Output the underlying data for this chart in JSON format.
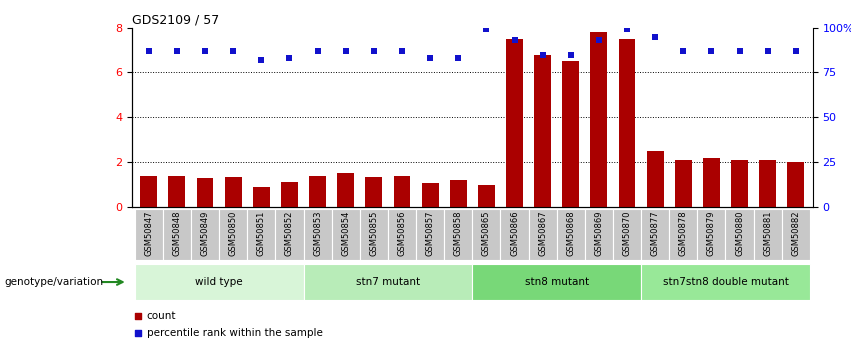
{
  "title": "GDS2109 / 57",
  "samples": [
    "GSM50847",
    "GSM50848",
    "GSM50849",
    "GSM50850",
    "GSM50851",
    "GSM50852",
    "GSM50853",
    "GSM50854",
    "GSM50855",
    "GSM50856",
    "GSM50857",
    "GSM50858",
    "GSM50865",
    "GSM50866",
    "GSM50867",
    "GSM50868",
    "GSM50869",
    "GSM50870",
    "GSM50877",
    "GSM50878",
    "GSM50879",
    "GSM50880",
    "GSM50881",
    "GSM50882"
  ],
  "counts": [
    1.4,
    1.4,
    1.3,
    1.35,
    0.9,
    1.1,
    1.4,
    1.5,
    1.35,
    1.4,
    1.05,
    1.2,
    1.0,
    7.5,
    6.8,
    6.5,
    7.8,
    7.5,
    2.5,
    2.1,
    2.2,
    2.1,
    2.1,
    2.0
  ],
  "percentiles": [
    87,
    87,
    87,
    87,
    82,
    83,
    87,
    87,
    87,
    87,
    83,
    83,
    99,
    93,
    85,
    85,
    93,
    99,
    95,
    87,
    87,
    87,
    87,
    87
  ],
  "groups": [
    {
      "label": "wild type",
      "start": 0,
      "end": 6,
      "color": "#d8f5d8"
    },
    {
      "label": "stn7 mutant",
      "start": 6,
      "end": 12,
      "color": "#b8ecb8"
    },
    {
      "label": "stn8 mutant",
      "start": 12,
      "end": 18,
      "color": "#78d878"
    },
    {
      "label": "stn7stn8 double mutant",
      "start": 18,
      "end": 24,
      "color": "#98e898"
    }
  ],
  "bar_color": "#aa0000",
  "dot_color": "#1111cc",
  "ylim_left": [
    0,
    8
  ],
  "ylim_right": [
    0,
    100
  ],
  "yticks_left": [
    0,
    2,
    4,
    6,
    8
  ],
  "yticks_right": [
    0,
    25,
    50,
    75,
    100
  ],
  "legend_count_label": "count",
  "legend_pct_label": "percentile rank within the sample",
  "group_label": "genotype/variation",
  "plot_bg": "#ffffff",
  "tick_bg": "#c8c8c8",
  "fig_width": 8.51,
  "fig_height": 3.45
}
